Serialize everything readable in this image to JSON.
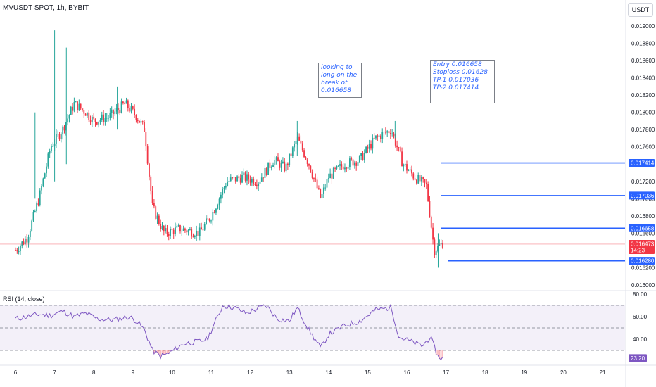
{
  "header": {
    "title": "MVUSDT SPOT, 1h, BYBIT",
    "currency": "USDT"
  },
  "annotations": {
    "note1": [
      "looking to",
      "long on the",
      "break of",
      "0.016658"
    ],
    "note2": [
      "Entry 0.016658",
      "Stoploss 0.01628",
      "TP-1 0.017036",
      "TP-2 0.017414"
    ]
  },
  "price_axis": {
    "ticks": [
      "0.019000",
      "0.018800",
      "0.018600",
      "0.018400",
      "0.018200",
      "0.018000",
      "0.017800",
      "0.017600",
      "0.017400",
      "0.017200",
      "0.017000",
      "0.016800",
      "0.016600",
      "0.016400",
      "0.016200",
      "0.016000"
    ],
    "badges": [
      {
        "label": "0.017414",
        "value": 0.017414,
        "color": "#2962ff"
      },
      {
        "label": "0.017036",
        "value": 0.017036,
        "color": "#2962ff"
      },
      {
        "label": "0.016658",
        "value": 0.016658,
        "color": "#2962ff"
      },
      {
        "label": "0.016473",
        "value": 0.016473,
        "color": "#f23645",
        "sub": "14:23"
      },
      {
        "label": "0.016280",
        "value": 0.01628,
        "color": "#2962ff"
      }
    ]
  },
  "rsi": {
    "title": "RSI (14, close)",
    "ticks": [
      "80.00",
      "60.00",
      "40.00"
    ],
    "levels": [
      70,
      50,
      30
    ],
    "current": "23.20",
    "current_value": 23.2
  },
  "x_axis": {
    "labels": [
      "6",
      "7",
      "8",
      "9",
      "10",
      "11",
      "12",
      "13",
      "14",
      "15",
      "16",
      "17",
      "18",
      "19",
      "20",
      "21"
    ]
  },
  "colors": {
    "up": "#26a69a",
    "down": "#f23645",
    "line": "#2962ff",
    "rsi_line": "#7e57c2",
    "rsi_band": "#7e57c2"
  },
  "chart_data": {
    "type": "candlestick",
    "title": "MVUSDT SPOT, 1h, BYBIT",
    "xlabel": "",
    "ylabel": "USDT",
    "ylim": [
      0.0159,
      0.0192
    ],
    "horizontal_levels": [
      0.017414,
      0.017036,
      0.016658,
      0.01628
    ],
    "last_price": 0.016473,
    "close_series": [
      {
        "day": 6.0,
        "price": 0.0164
      },
      {
        "day": 6.3,
        "price": 0.01655
      },
      {
        "day": 6.6,
        "price": 0.017
      },
      {
        "day": 6.9,
        "price": 0.0176
      },
      {
        "day": 7.2,
        "price": 0.0178
      },
      {
        "day": 7.5,
        "price": 0.0181
      },
      {
        "day": 7.8,
        "price": 0.018
      },
      {
        "day": 8.0,
        "price": 0.0179
      },
      {
        "day": 8.4,
        "price": 0.01795
      },
      {
        "day": 8.8,
        "price": 0.0181
      },
      {
        "day": 9.1,
        "price": 0.01795
      },
      {
        "day": 9.3,
        "price": 0.0178
      },
      {
        "day": 9.5,
        "price": 0.0169
      },
      {
        "day": 9.8,
        "price": 0.0166
      },
      {
        "day": 10.2,
        "price": 0.01665
      },
      {
        "day": 10.7,
        "price": 0.0166
      },
      {
        "day": 11.0,
        "price": 0.0168
      },
      {
        "day": 11.4,
        "price": 0.0172
      },
      {
        "day": 11.8,
        "price": 0.01725
      },
      {
        "day": 12.2,
        "price": 0.0172
      },
      {
        "day": 12.6,
        "price": 0.01745
      },
      {
        "day": 12.9,
        "price": 0.01735
      },
      {
        "day": 13.2,
        "price": 0.0177
      },
      {
        "day": 13.5,
        "price": 0.0174
      },
      {
        "day": 13.8,
        "price": 0.017
      },
      {
        "day": 14.0,
        "price": 0.01725
      },
      {
        "day": 14.4,
        "price": 0.0174
      },
      {
        "day": 14.8,
        "price": 0.01745
      },
      {
        "day": 15.2,
        "price": 0.0177
      },
      {
        "day": 15.6,
        "price": 0.0178
      },
      {
        "day": 15.9,
        "price": 0.0174
      },
      {
        "day": 16.2,
        "price": 0.01725
      },
      {
        "day": 16.5,
        "price": 0.01715
      },
      {
        "day": 16.7,
        "price": 0.0164
      },
      {
        "day": 16.9,
        "price": 0.01648
      }
    ],
    "rsi_series": [
      {
        "day": 6.0,
        "value": 58
      },
      {
        "day": 6.3,
        "value": 60
      },
      {
        "day": 6.6,
        "value": 62
      },
      {
        "day": 6.9,
        "value": 61
      },
      {
        "day": 7.2,
        "value": 65
      },
      {
        "day": 7.5,
        "value": 60
      },
      {
        "day": 7.8,
        "value": 63
      },
      {
        "day": 8.1,
        "value": 58
      },
      {
        "day": 8.5,
        "value": 57
      },
      {
        "day": 8.9,
        "value": 60
      },
      {
        "day": 9.1,
        "value": 56
      },
      {
        "day": 9.3,
        "value": 48
      },
      {
        "day": 9.5,
        "value": 30
      },
      {
        "day": 9.7,
        "value": 25
      },
      {
        "day": 9.9,
        "value": 27
      },
      {
        "day": 10.3,
        "value": 36
      },
      {
        "day": 10.7,
        "value": 38
      },
      {
        "day": 10.9,
        "value": 40
      },
      {
        "day": 11.1,
        "value": 55
      },
      {
        "day": 11.3,
        "value": 70
      },
      {
        "day": 11.6,
        "value": 68
      },
      {
        "day": 11.9,
        "value": 63
      },
      {
        "day": 12.1,
        "value": 66
      },
      {
        "day": 12.4,
        "value": 70
      },
      {
        "day": 12.7,
        "value": 58
      },
      {
        "day": 13.0,
        "value": 56
      },
      {
        "day": 13.2,
        "value": 68
      },
      {
        "day": 13.5,
        "value": 48
      },
      {
        "day": 13.8,
        "value": 32
      },
      {
        "day": 14.0,
        "value": 44
      },
      {
        "day": 14.4,
        "value": 52
      },
      {
        "day": 14.8,
        "value": 56
      },
      {
        "day": 15.2,
        "value": 66
      },
      {
        "day": 15.6,
        "value": 68
      },
      {
        "day": 15.8,
        "value": 42
      },
      {
        "day": 16.1,
        "value": 38
      },
      {
        "day": 16.4,
        "value": 34
      },
      {
        "day": 16.6,
        "value": 42
      },
      {
        "day": 16.8,
        "value": 24
      },
      {
        "day": 16.95,
        "value": 23.2
      }
    ]
  }
}
